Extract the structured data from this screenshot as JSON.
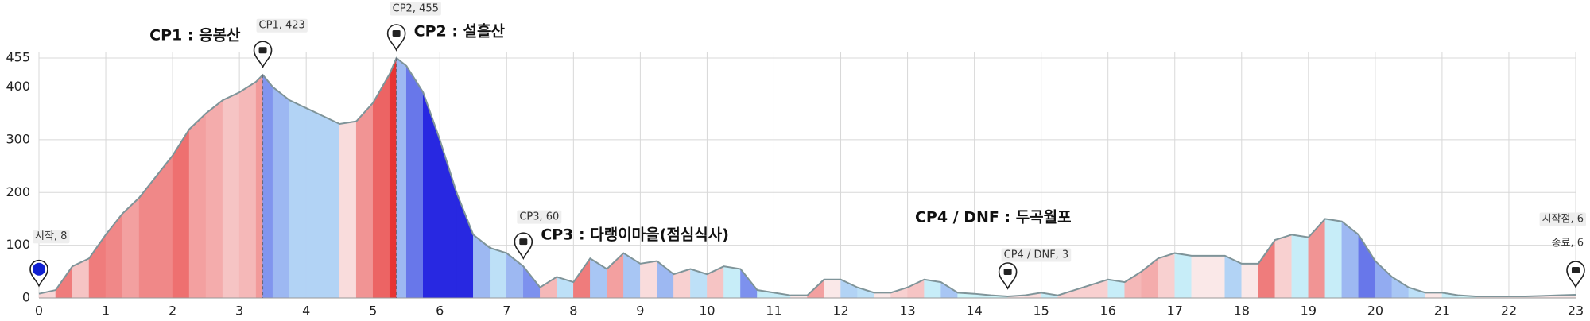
{
  "chart_data": {
    "type": "area",
    "xlim": [
      0,
      23
    ],
    "ylim": [
      0,
      455
    ],
    "xticks": [
      0,
      1,
      2,
      3,
      4,
      5,
      6,
      7,
      8,
      9,
      10,
      11,
      12,
      13,
      14,
      15,
      16,
      17,
      18,
      19,
      20,
      21,
      22,
      23
    ],
    "yticks": [
      0,
      100,
      200,
      300,
      400,
      455
    ],
    "grid": true,
    "line_color": "#7f9499",
    "x": [
      0,
      0.25,
      0.5,
      0.75,
      1,
      1.25,
      1.5,
      1.75,
      2,
      2.25,
      2.5,
      2.75,
      3,
      3.25,
      3.35,
      3.5,
      3.75,
      4,
      4.25,
      4.5,
      4.75,
      5,
      5.25,
      5.35,
      5.5,
      5.75,
      6,
      6.25,
      6.5,
      6.75,
      7,
      7.25,
      7.5,
      7.75,
      8,
      8.25,
      8.5,
      8.75,
      9,
      9.25,
      9.5,
      9.75,
      10,
      10.25,
      10.5,
      10.75,
      11,
      11.25,
      11.5,
      11.75,
      12,
      12.25,
      12.5,
      12.75,
      13,
      13.25,
      13.5,
      13.75,
      14,
      14.25,
      14.5,
      14.75,
      15,
      15.25,
      15.5,
      15.75,
      16,
      16.25,
      16.5,
      16.75,
      17,
      17.25,
      17.5,
      17.75,
      18,
      18.25,
      18.5,
      18.75,
      19,
      19.25,
      19.5,
      19.75,
      20,
      20.25,
      20.5,
      20.75,
      21,
      21.25,
      21.5,
      21.75,
      22,
      22.25,
      22.5,
      22.75,
      23
    ],
    "values": [
      8,
      15,
      60,
      75,
      120,
      160,
      190,
      230,
      270,
      320,
      350,
      375,
      390,
      410,
      423,
      400,
      375,
      360,
      345,
      330,
      335,
      370,
      425,
      455,
      440,
      390,
      300,
      200,
      120,
      95,
      85,
      60,
      20,
      40,
      30,
      75,
      55,
      85,
      65,
      70,
      45,
      55,
      45,
      60,
      55,
      15,
      10,
      5,
      5,
      35,
      35,
      20,
      10,
      10,
      20,
      35,
      30,
      10,
      8,
      5,
      3,
      5,
      10,
      5,
      15,
      25,
      35,
      30,
      50,
      75,
      85,
      80,
      80,
      80,
      65,
      65,
      110,
      120,
      115,
      150,
      145,
      120,
      70,
      40,
      20,
      10,
      10,
      5,
      3,
      3,
      3,
      3,
      4,
      5,
      6
    ],
    "markers": [
      {
        "label": "시작, 8",
        "x": 0,
        "y": 8
      },
      {
        "label": "CP1, 423",
        "x": 3.35,
        "y": 423,
        "title": "CP1 : 응봉산"
      },
      {
        "label": "CP2, 455",
        "x": 5.35,
        "y": 455,
        "title": "CP2 : 설흘산"
      },
      {
        "label": "CP3, 60",
        "x": 7.25,
        "y": 60,
        "title": "CP3 : 다랭이마을(점심식사)"
      },
      {
        "label": "CP4 / DNF, 3",
        "x": 14.5,
        "y": 3,
        "title": "CP4 / DNF : 두곡월포"
      },
      {
        "label": "시작점, 6",
        "x": 23,
        "y": 6
      },
      {
        "label": "종료, 6",
        "x": 23,
        "y": 6
      }
    ]
  }
}
